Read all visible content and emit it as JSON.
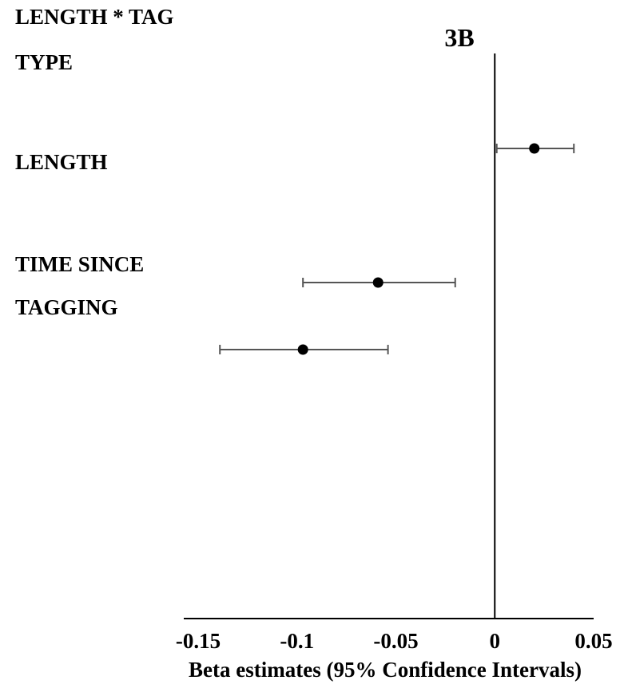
{
  "chart_data": {
    "type": "scatter",
    "title": "3B",
    "xlabel": "Beta estimates (95% Confidence Intervals)",
    "ylabel": "",
    "xlim": [
      -0.15,
      0.05
    ],
    "xticks": [
      "-0.15",
      "-0.1",
      "-0.05",
      "0",
      "0.05"
    ],
    "xtick_values": [
      -0.15,
      -0.1,
      -0.05,
      0,
      0.05
    ],
    "category_labels": [
      [
        "LENGTH * TAG",
        "TYPE"
      ],
      [
        "LENGTH"
      ],
      [
        "TIME SINCE",
        "TAGGING"
      ]
    ],
    "points": [
      {
        "estimate": 0.02,
        "lower": 0.001,
        "upper": 0.04
      },
      {
        "estimate": -0.059,
        "lower": -0.097,
        "upper": -0.02
      },
      {
        "estimate": -0.097,
        "lower": -0.139,
        "upper": -0.054
      }
    ],
    "grid": false,
    "legend": "none",
    "colors": {
      "marker": "#000000",
      "errorbar": "#555555",
      "axis": "#000000"
    }
  }
}
